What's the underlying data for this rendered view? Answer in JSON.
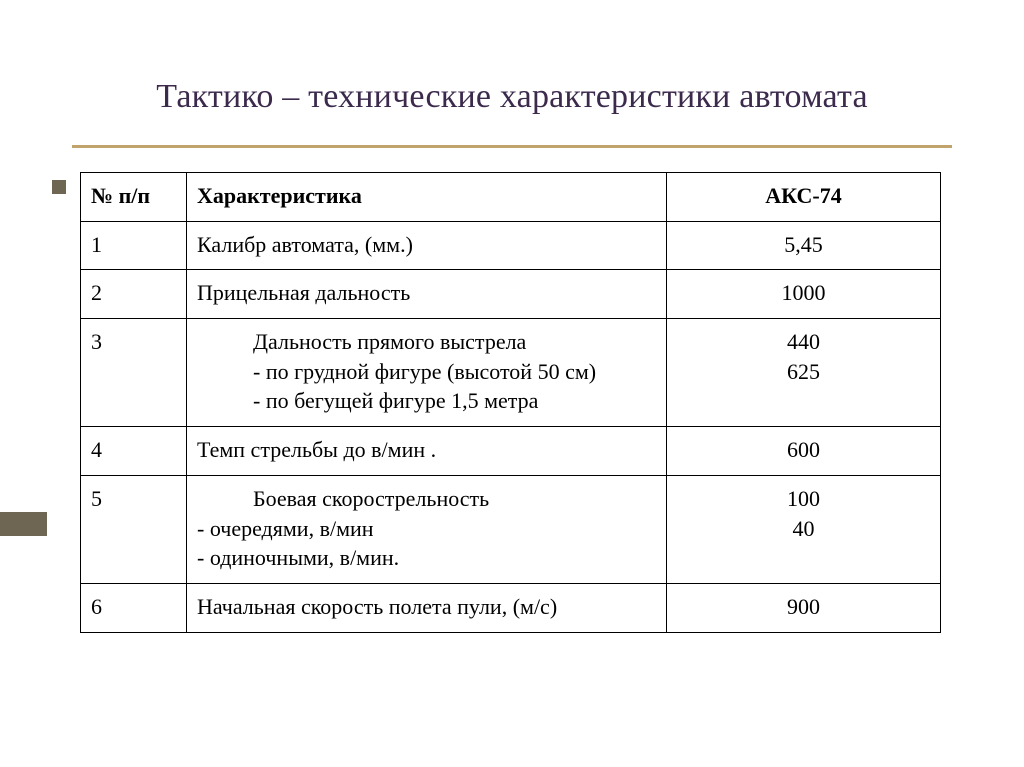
{
  "title": "Тактико – технические характеристики автомата",
  "accent_underline_color": "#c0a46c",
  "left_accent_color": "#6e6553",
  "table": {
    "columns": [
      "№ п/п",
      "Характеристика",
      "АКС-74"
    ],
    "rows": [
      {
        "num": "1",
        "char_lines": [
          "Калибр автомата, (мм.)"
        ],
        "char_indent": [
          false
        ],
        "val_lines": [
          "5,45"
        ]
      },
      {
        "num": "2",
        "char_lines": [
          "Прицельная дальность"
        ],
        "char_indent": [
          false
        ],
        "val_lines": [
          "1000"
        ]
      },
      {
        "num": "3",
        "char_lines": [
          "Дальность прямого выстрела",
          "-  по грудной фигуре (высотой 50 см)",
          "-  по бегущей фигуре 1,5 метра"
        ],
        "char_indent": [
          true,
          true,
          true
        ],
        "val_lines": [
          "440",
          "625"
        ]
      },
      {
        "num": "4",
        "char_lines": [
          "Темп стрельбы до в/мин ."
        ],
        "char_indent": [
          false
        ],
        "val_lines": [
          "600"
        ]
      },
      {
        "num": "5",
        "char_lines": [
          "Боевая скорострельность",
          "- очередями, в/мин",
          "- одиночными, в/мин."
        ],
        "char_indent": [
          true,
          false,
          false
        ],
        "val_lines": [
          "100",
          "40"
        ]
      },
      {
        "num": "6",
        "char_lines": [
          "Начальная скорость полета пули, (м/с)"
        ],
        "char_indent": [
          false
        ],
        "val_lines": [
          "900"
        ]
      }
    ]
  }
}
